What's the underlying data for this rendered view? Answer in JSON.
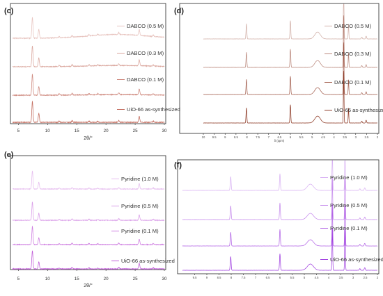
{
  "chart_data": [
    {
      "panel": "(c)",
      "type": "line",
      "kind": "xrd",
      "color": "#c26a5c",
      "xlabel": "2θ/°",
      "xlim": [
        4,
        30
      ],
      "xticks": [
        5,
        10,
        15,
        20,
        25,
        30
      ],
      "peaks": [
        [
          7.4,
          1.0
        ],
        [
          8.5,
          0.42
        ],
        [
          12.0,
          0.06
        ],
        [
          14.2,
          0.08
        ],
        [
          17.1,
          0.06
        ],
        [
          18.6,
          0.05
        ],
        [
          22.2,
          0.09
        ],
        [
          25.7,
          0.28
        ],
        [
          28.1,
          0.06
        ]
      ],
      "series": [
        {
          "name": "DABCO (0.5 M)",
          "hump": 0.18
        },
        {
          "name": "DABCO (0.3 M)",
          "hump": 0.06
        },
        {
          "name": "DABCO (0.1 M)",
          "hump": 0.03
        },
        {
          "name": "UiO-66 as-synthesized",
          "hump": 0.0
        }
      ]
    },
    {
      "panel": "(d)",
      "type": "line",
      "kind": "nmr",
      "color": "#8e3b27",
      "xlabel": "δ (ppm)",
      "xlim": [
        10.0,
        2.0
      ],
      "xticks": [
        10.0,
        9.5,
        9.0,
        8.5,
        8.0,
        7.5,
        7.0,
        6.5,
        6.0,
        5.5,
        5.0,
        4.5,
        4.0,
        3.5,
        3.0,
        2.5,
        2.0
      ],
      "peaks": [
        [
          8.02,
          1.0,
          0.025
        ],
        [
          6.0,
          1.2,
          0.025
        ],
        [
          4.75,
          0.45,
          0.18
        ],
        [
          3.55,
          3.5,
          0.02
        ],
        [
          3.33,
          1.0,
          0.02
        ],
        [
          2.72,
          0.12,
          0.03
        ],
        [
          2.52,
          0.18,
          0.03
        ]
      ],
      "series": [
        {
          "name": "DABCO (0.5 M)"
        },
        {
          "name": "DABCO (0.3 M)"
        },
        {
          "name": "DABCO (0.1 M)"
        },
        {
          "name": "UiO-66 as-synthesized"
        }
      ]
    },
    {
      "panel": "(e)",
      "type": "line",
      "kind": "xrd",
      "color": "#c05ad8",
      "xlabel": "2θ/°",
      "xlim": [
        4,
        30
      ],
      "xticks": [
        5,
        10,
        15,
        20,
        25,
        30
      ],
      "peaks": [
        [
          7.4,
          1.0
        ],
        [
          8.5,
          0.38
        ],
        [
          12.0,
          0.05
        ],
        [
          14.2,
          0.08
        ],
        [
          17.1,
          0.06
        ],
        [
          18.6,
          0.05
        ],
        [
          22.2,
          0.09
        ],
        [
          25.7,
          0.3
        ],
        [
          28.1,
          0.06
        ]
      ],
      "series": [
        {
          "name": "Pyridine (1.0 M)",
          "hump": 0.0
        },
        {
          "name": "Pyridine (0.5 M)",
          "hump": 0.0
        },
        {
          "name": "Pyridine (0.1 M)",
          "hump": 0.0
        },
        {
          "name": "UiO-66 as-synthesized",
          "hump": 0.0
        }
      ]
    },
    {
      "panel": "(f)",
      "type": "line",
      "kind": "nmr",
      "color": "#a040e0",
      "xlabel": "",
      "xlim": [
        10.0,
        2.0
      ],
      "xticks": [
        9.5,
        9.0,
        8.5,
        8.0,
        7.5,
        7.0,
        6.5,
        6.0,
        5.5,
        5.0,
        4.5,
        4.0,
        3.5,
        3.0,
        2.5,
        2.0
      ],
      "peaks": [
        [
          8.02,
          1.0,
          0.025
        ],
        [
          6.0,
          1.2,
          0.025
        ],
        [
          4.75,
          0.45,
          0.18
        ],
        [
          3.85,
          3.0,
          0.02
        ],
        [
          3.33,
          3.0,
          0.02
        ],
        [
          2.72,
          0.12,
          0.03
        ],
        [
          2.52,
          0.18,
          0.03
        ]
      ],
      "series": [
        {
          "name": "Pyridine (1.0 M)"
        },
        {
          "name": "Pyridine (0.5 M)"
        },
        {
          "name": "Pyridine (0.1 M)"
        },
        {
          "name": "UiO-66 as-synthesized"
        }
      ]
    }
  ]
}
